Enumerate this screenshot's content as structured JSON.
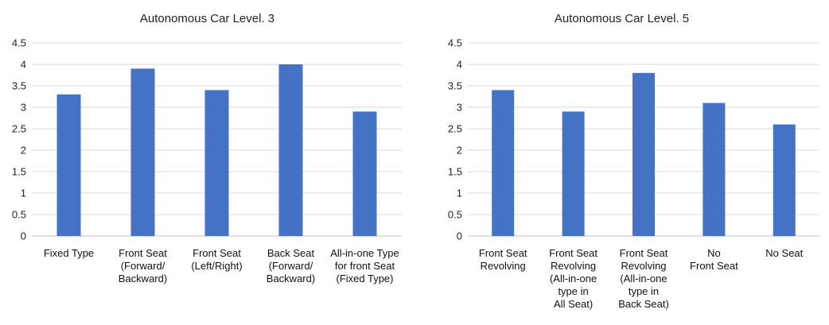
{
  "chart_data": [
    {
      "type": "bar",
      "title": "Autonomous Car Level. 3",
      "categories": [
        "Fixed Type",
        "Front Seat\n(Forward/\nBackward)",
        "Front Seat\n(Left/Right)",
        "Back Seat\n(Forward/\nBackward)",
        "All-in-one Type\nfor front Seat\n(Fixed Type)"
      ],
      "values": [
        3.3,
        3.9,
        3.4,
        4.0,
        2.9
      ],
      "ylim": [
        0,
        4.5
      ],
      "yticks": [
        "0",
        "0.5",
        "1",
        "1.5",
        "2",
        "2.5",
        "3",
        "3.5",
        "4",
        "4.5"
      ],
      "xlabel": "",
      "ylabel": "",
      "grid": true,
      "bar_color": "#4472C4"
    },
    {
      "type": "bar",
      "title": "Autonomous Car Level. 5",
      "categories": [
        "Front Seat\nRevolving",
        "Front Seat\nRevolving\n(All-in-one\ntype in\nAll Seat)",
        "Front Seat\nRevolving\n(All-in-one\ntype in\nBack Seat)",
        "No\nFront Seat",
        "No Seat"
      ],
      "values": [
        3.4,
        2.9,
        3.8,
        3.1,
        2.6
      ],
      "ylim": [
        0,
        4.5
      ],
      "yticks": [
        "0",
        "0.5",
        "1",
        "1.5",
        "2",
        "2.5",
        "3",
        "3.5",
        "4",
        "4.5"
      ],
      "xlabel": "",
      "ylabel": "",
      "grid": true,
      "bar_color": "#4472C4"
    }
  ]
}
